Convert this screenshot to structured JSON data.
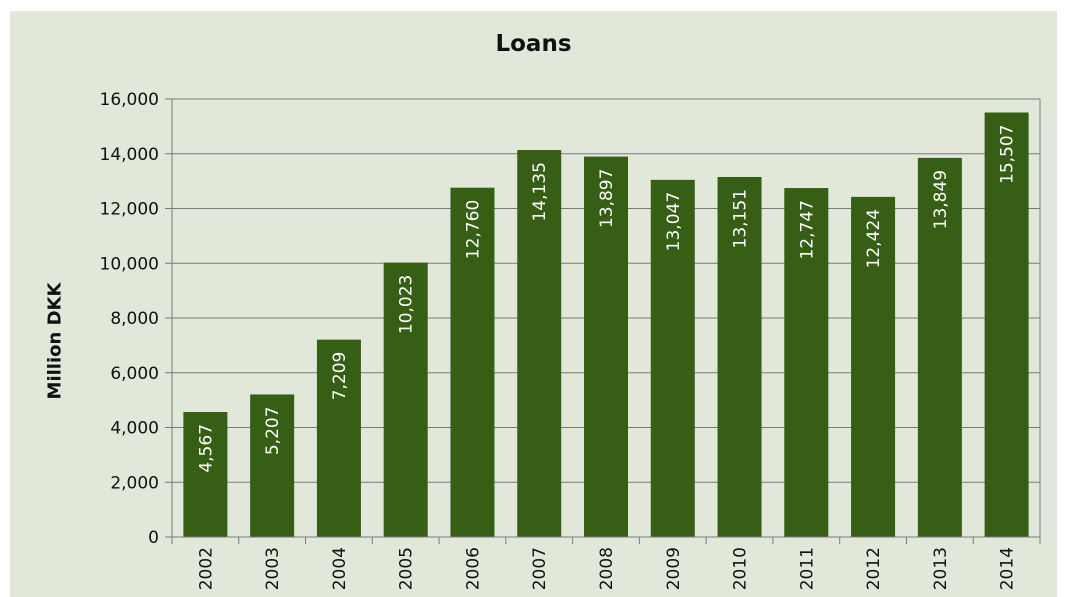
{
  "chart_data": {
    "type": "bar",
    "title": "Loans",
    "ylabel": "Million DKK",
    "xlabel": "",
    "categories": [
      "2002",
      "2003",
      "2004",
      "2005",
      "2006",
      "2007",
      "2008",
      "2009",
      "2010",
      "2011",
      "2012",
      "2013",
      "2014"
    ],
    "values": [
      4567,
      5207,
      7209,
      10023,
      12760,
      14135,
      13897,
      13047,
      13151,
      12747,
      12424,
      13849,
      15507
    ],
    "data_labels": [
      "4,567",
      "5,207",
      "7,209",
      "10,023",
      "12,760",
      "14,135",
      "13,897",
      "13,047",
      "13,151",
      "12,747",
      "12,424",
      "13,849",
      "15,507"
    ],
    "yticks": [
      0,
      2000,
      4000,
      6000,
      8000,
      10000,
      12000,
      14000,
      16000
    ],
    "ytick_labels": [
      "0",
      "2,000",
      "4,000",
      "6,000",
      "8,000",
      "10,000",
      "12,000",
      "14,000",
      "16,000"
    ],
    "ylim": [
      0,
      16000
    ],
    "grid": true,
    "legend": "none",
    "colors": {
      "bar": "#365e14",
      "background": "#e1e8da",
      "grid": "#7a7a7a",
      "bar_label": "#ffffff",
      "text": "#111111"
    }
  }
}
